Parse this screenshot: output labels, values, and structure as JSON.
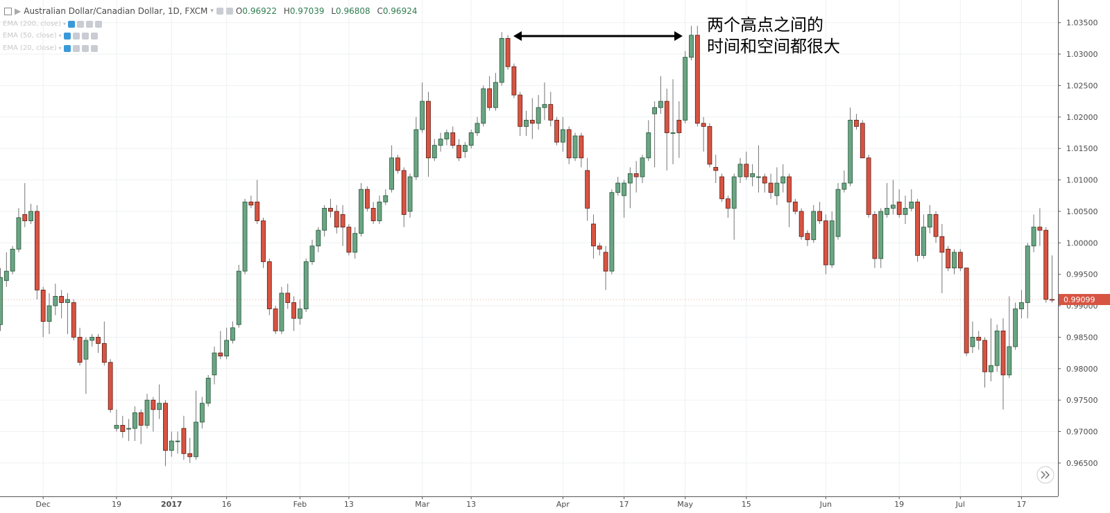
{
  "chart_data": {
    "type": "candlestick",
    "title": "Australian Dollar/Canadian Dollar, 1D, FXCM",
    "ohlc_labels": [
      "O",
      "H",
      "L",
      "C"
    ],
    "ohlc_values": [
      0.96922,
      0.97039,
      0.96808,
      0.96924
    ],
    "indicators": [
      "EMA (200, close)",
      "EMA (50, close)",
      "EMA (20, close)"
    ],
    "annotation": [
      "两个高点之间的",
      "时间和空间都很大"
    ],
    "up_color": "#6ba583",
    "down_color": "#d75442",
    "grid": true,
    "ylim": [
      0.9597,
      1.0386
    ],
    "yticks": [
      {
        "value": 0.965,
        "label": "0.96500"
      },
      {
        "value": 0.97,
        "label": "0.97000"
      },
      {
        "value": 0.975,
        "label": "0.97500"
      },
      {
        "value": 0.98,
        "label": "0.98000"
      },
      {
        "value": 0.985,
        "label": "0.98500"
      },
      {
        "value": 0.99,
        "label": "0.99000"
      },
      {
        "value": 0.995,
        "label": "0.99500"
      },
      {
        "value": 1.0,
        "label": "1.00000"
      },
      {
        "value": 1.005,
        "label": "1.00500"
      },
      {
        "value": 1.01,
        "label": "1.01000"
      },
      {
        "value": 1.015,
        "label": "1.01500"
      },
      {
        "value": 1.02,
        "label": "1.02000"
      },
      {
        "value": 1.025,
        "label": "1.02500"
      },
      {
        "value": 1.03,
        "label": "1.03000"
      },
      {
        "value": 1.035,
        "label": "1.03500"
      }
    ],
    "categories": [
      null,
      null,
      null,
      null,
      null,
      null,
      null,
      "Dec",
      null,
      null,
      null,
      null,
      null,
      null,
      null,
      null,
      null,
      null,
      null,
      "19",
      null,
      null,
      null,
      null,
      null,
      null,
      null,
      null,
      "2017",
      null,
      null,
      null,
      null,
      null,
      null,
      null,
      null,
      "16",
      null,
      null,
      null,
      null,
      null,
      null,
      null,
      null,
      null,
      null,
      null,
      "Feb",
      null,
      null,
      null,
      null,
      null,
      null,
      null,
      "13",
      null,
      null,
      null,
      null,
      null,
      null,
      null,
      null,
      null,
      null,
      null,
      "Mar",
      null,
      null,
      null,
      null,
      null,
      null,
      null,
      "13",
      null,
      null,
      null,
      null,
      null,
      null,
      null,
      null,
      null,
      null,
      null,
      null,
      null,
      null,
      "Apr",
      null,
      null,
      null,
      null,
      null,
      null,
      null,
      null,
      null,
      "17",
      null,
      null,
      null,
      null,
      null,
      null,
      null,
      null,
      null,
      "May",
      null,
      null,
      null,
      null,
      null,
      null,
      null,
      null,
      null,
      "15",
      null,
      null,
      null,
      null,
      null,
      null,
      null,
      null,
      null,
      null,
      null,
      null,
      "Jun",
      null,
      null,
      null,
      null,
      null,
      null,
      null,
      null,
      null,
      null,
      null,
      "19",
      null,
      null,
      null,
      null,
      null,
      null,
      null,
      null,
      null,
      "Jul",
      null,
      null,
      null,
      null,
      null,
      null,
      null,
      null,
      null,
      "17",
      null,
      null,
      null,
      null,
      null
    ],
    "open": [
      0.987,
      0.994,
      0.9955,
      0.999,
      1.0045,
      1.0035,
      1.005,
      0.9925,
      0.9875,
      0.99,
      0.9915,
      0.9905,
      0.9905,
      0.985,
      0.9815,
      0.9845,
      0.985,
      0.984,
      0.981,
      0.9705,
      0.971,
      0.9705,
      0.9705,
      0.973,
      0.971,
      0.975,
      0.9735,
      0.9745,
      0.967,
      0.9685,
      0.9705,
      0.9665,
      0.966,
      0.9715,
      0.9745,
      0.979,
      0.9825,
      0.982,
      0.9845,
      0.987,
      0.9955,
      1.0065,
      1.0065,
      1.0035,
      0.997,
      0.9895,
      0.986,
      0.992,
      0.9905,
      0.988,
      0.9895,
      0.997,
      0.9995,
      1.002,
      1.0055,
      1.005,
      1.0045,
      1.0025,
      0.9985,
      1.0015,
      1.0085,
      1.0055,
      1.0035,
      1.0065,
      1.0085,
      1.0135,
      1.0115,
      1.005,
      1.0105,
      1.018,
      1.0225,
      1.0135,
      1.0155,
      1.0165,
      1.0175,
      1.0155,
      1.0145,
      1.0155,
      1.0175,
      1.019,
      1.0245,
      1.0215,
      1.0255,
      1.0325,
      1.028,
      1.0235,
      1.0185,
      1.0195,
      1.019,
      1.0215,
      1.022,
      1.0195,
      1.016,
      1.018,
      1.0135,
      1.017,
      1.0115,
      1.003,
      0.9995,
      0.9985,
      0.9955,
      1.008,
      1.0075,
      1.0095,
      1.011,
      1.0105,
      1.0135,
      1.0205,
      1.0215,
      1.0225,
      1.0175,
      1.0195,
      1.0195,
      1.0295,
      1.033,
      1.019,
      1.0185,
      1.012,
      1.0105,
      1.007,
      1.0055,
      1.0105,
      1.0125,
      1.0105,
      1.0105,
      1.0105,
      1.0095,
      1.0075,
      1.0095,
      1.0105,
      1.0065,
      1.005,
      1.0015,
      1.0005,
      1.005,
      1.0035,
      0.9965,
      1.001,
      1.0085,
      1.0095,
      1.0195,
      1.019,
      1.0135,
      1.0045,
      0.9975,
      1.0045,
      1.0055,
      1.0065,
      1.0045,
      1.0055,
      1.0065,
      0.998,
      1.0025,
      1.0045,
      1.001,
      0.999,
      0.996,
      0.9985,
      0.996,
      0.9835,
      0.985,
      0.9845,
      0.9795,
      0.9805,
      0.986,
      0.979,
      0.9835,
      0.9895,
      0.9905,
      0.9995,
      1.0025,
      1.002,
      0.991
    ],
    "high": [
      0.996,
      0.9985,
      0.9995,
      1.0055,
      1.0095,
      1.0062,
      1.006,
      0.993,
      0.992,
      0.9935,
      0.9925,
      0.992,
      0.991,
      0.9865,
      0.985,
      0.9855,
      0.9855,
      0.9875,
      0.9815,
      0.9735,
      0.9725,
      0.972,
      0.974,
      0.9735,
      0.976,
      0.9755,
      0.9775,
      0.975,
      0.97,
      0.97,
      0.9725,
      0.969,
      0.9765,
      0.9755,
      0.979,
      0.9835,
      0.986,
      0.9865,
      0.9875,
      0.9965,
      1.007,
      1.0075,
      1.01,
      1.004,
      0.9975,
      0.99,
      0.993,
      0.9935,
      0.9915,
      0.991,
      0.9975,
      1.0005,
      1.0025,
      1.006,
      1.007,
      1.006,
      1.006,
      1.003,
      1.0025,
      1.0095,
      1.009,
      1.0065,
      1.0075,
      1.0085,
      1.0155,
      1.014,
      1.012,
      1.011,
      1.02,
      1.0255,
      1.024,
      1.0165,
      1.0175,
      1.018,
      1.0185,
      1.0165,
      1.016,
      1.018,
      1.02,
      1.025,
      1.0265,
      1.027,
      1.0335,
      1.033,
      1.0285,
      1.024,
      1.021,
      1.023,
      1.0235,
      1.0255,
      1.024,
      1.02,
      1.02,
      1.0185,
      1.0175,
      1.0175,
      1.0135,
      1.0045,
      1.0,
      0.9995,
      1.0085,
      1.0105,
      1.01,
      1.012,
      1.013,
      1.014,
      1.0195,
      1.0225,
      1.0265,
      1.0245,
      1.026,
      1.0225,
      1.0305,
      1.0345,
      1.0345,
      1.02,
      1.019,
      1.014,
      1.011,
      1.0075,
      1.011,
      1.0135,
      1.0145,
      1.0125,
      1.0155,
      1.011,
      1.011,
      1.012,
      1.0125,
      1.011,
      1.007,
      1.0055,
      1.002,
      1.006,
      1.0065,
      1.0045,
      1.005,
      1.0095,
      1.0115,
      1.0215,
      1.0205,
      1.0195,
      1.014,
      1.005,
      1.0055,
      1.0095,
      1.01,
      1.0085,
      1.0075,
      1.0085,
      1.007,
      1.0045,
      1.006,
      1.005,
      1.003,
      0.9995,
      0.999,
      0.999,
      0.996,
      0.9875,
      0.986,
      0.985,
      0.988,
      0.987,
      0.988,
      0.9915,
      0.9905,
      0.9925,
      1.0,
      1.0045,
      1.0055,
      1.0025,
      0.998
    ],
    "low": [
      0.986,
      0.993,
      0.995,
      0.9985,
      1.0025,
      1.003,
      0.991,
      0.985,
      0.9855,
      0.9885,
      0.988,
      0.9855,
      0.9845,
      0.9805,
      0.976,
      0.9835,
      0.9825,
      0.9805,
      0.973,
      0.97,
      0.969,
      0.9685,
      0.9685,
      0.968,
      0.9705,
      0.97,
      0.972,
      0.9645,
      0.966,
      0.9665,
      0.9655,
      0.965,
      0.9655,
      0.9705,
      0.974,
      0.9775,
      0.9815,
      0.9815,
      0.984,
      0.9865,
      0.995,
      1.0055,
      1.003,
      0.996,
      0.9885,
      0.9855,
      0.9855,
      0.9895,
      0.986,
      0.987,
      0.989,
      0.9965,
      0.9985,
      1.001,
      1.004,
      1.0015,
      0.9995,
      0.998,
      0.9975,
      1.001,
      1.005,
      1.003,
      1.003,
      1.006,
      1.008,
      1.011,
      1.0025,
      1.004,
      1.01,
      1.0175,
      1.0105,
      1.013,
      1.0145,
      1.0155,
      1.015,
      1.013,
      1.0135,
      1.015,
      1.017,
      1.0185,
      1.021,
      1.021,
      1.025,
      1.0275,
      1.023,
      1.017,
      1.017,
      1.0165,
      1.018,
      1.0195,
      1.0185,
      1.0155,
      1.0145,
      1.0125,
      1.013,
      1.012,
      1.0035,
      0.9975,
      0.998,
      0.9925,
      0.995,
      1.0075,
      1.004,
      1.0055,
      1.008,
      1.0095,
      1.013,
      1.012,
      1.0205,
      1.0115,
      1.0125,
      1.0135,
      1.019,
      1.029,
      1.0185,
      1.0145,
      1.012,
      1.0095,
      1.0065,
      1.004,
      1.0005,
      1.0095,
      1.01,
      1.009,
      1.008,
      1.008,
      1.007,
      1.006,
      1.008,
      1.0025,
      1.0045,
      1.0005,
      0.9995,
      1.0,
      1.003,
      0.995,
      0.996,
      1.0005,
      1.008,
      1.009,
      1.018,
      1.0135,
      1.004,
      0.996,
      0.996,
      1.004,
      1.0045,
      1.004,
      1.003,
      1.005,
      0.997,
      0.9975,
      1.0015,
      1.0,
      0.992,
      0.9955,
      0.995,
      0.9955,
      0.982,
      0.9825,
      0.983,
      0.977,
      0.978,
      0.9795,
      0.9735,
      0.9785,
      0.983,
      0.988,
      0.988,
      0.9985,
      0.9995,
      0.9905,
      0.9905
    ],
    "close": [
      0.9945,
      0.9955,
      0.999,
      1.004,
      1.0035,
      1.005,
      0.9925,
      0.9875,
      0.99,
      0.9915,
      0.9905,
      0.991,
      0.985,
      0.981,
      0.9845,
      0.985,
      0.984,
      0.981,
      0.9735,
      0.971,
      0.97,
      0.9705,
      0.973,
      0.971,
      0.975,
      0.9735,
      0.9745,
      0.967,
      0.9685,
      0.9685,
      0.9665,
      0.966,
      0.9715,
      0.9745,
      0.9785,
      0.9825,
      0.982,
      0.9845,
      0.9865,
      0.9955,
      1.0065,
      1.006,
      1.0035,
      0.997,
      0.9895,
      0.986,
      0.992,
      0.9905,
      0.988,
      0.9895,
      0.997,
      0.9995,
      1.002,
      1.0055,
      1.005,
      1.0025,
      1.0025,
      0.9985,
      1.0015,
      1.0085,
      1.0055,
      1.0035,
      1.0065,
      1.0075,
      1.0135,
      1.0115,
      1.0045,
      1.0105,
      1.018,
      1.0225,
      1.0135,
      1.0155,
      1.0165,
      1.0175,
      1.0155,
      1.0135,
      1.0155,
      1.0175,
      1.019,
      1.0245,
      1.0215,
      1.0255,
      1.0325,
      1.028,
      1.0235,
      1.0185,
      1.0195,
      1.019,
      1.0215,
      1.022,
      1.0195,
      1.016,
      1.018,
      1.0135,
      1.017,
      1.0135,
      1.0055,
      0.9995,
      0.999,
      0.9955,
      1.008,
      1.0095,
      1.0095,
      1.011,
      1.0105,
      1.0135,
      1.0175,
      1.0215,
      1.0225,
      1.0175,
      1.0175,
      1.0175,
      1.0295,
      1.033,
      1.019,
      1.0185,
      1.0125,
      1.0115,
      1.007,
      1.0055,
      1.0105,
      1.0125,
      1.0105,
      1.011,
      1.0105,
      1.0095,
      1.008,
      1.0095,
      1.0105,
      1.0065,
      1.005,
      1.001,
      1.0005,
      1.005,
      1.0035,
      0.9965,
      1.0035,
      1.0085,
      1.0095,
      1.0195,
      1.0185,
      1.0135,
      1.0045,
      0.9975,
      1.005,
      1.0055,
      1.006,
      1.0045,
      1.0055,
      1.0065,
      0.998,
      1.0025,
      1.0045,
      1.001,
      0.9985,
      0.996,
      0.9985,
      0.996,
      0.9825,
      0.985,
      0.9845,
      0.9795,
      0.9805,
      0.986,
      0.979,
      0.9835,
      0.9895,
      0.9905,
      0.9995,
      1.0025,
      1.002,
      0.991,
      0.99099
    ]
  }
}
